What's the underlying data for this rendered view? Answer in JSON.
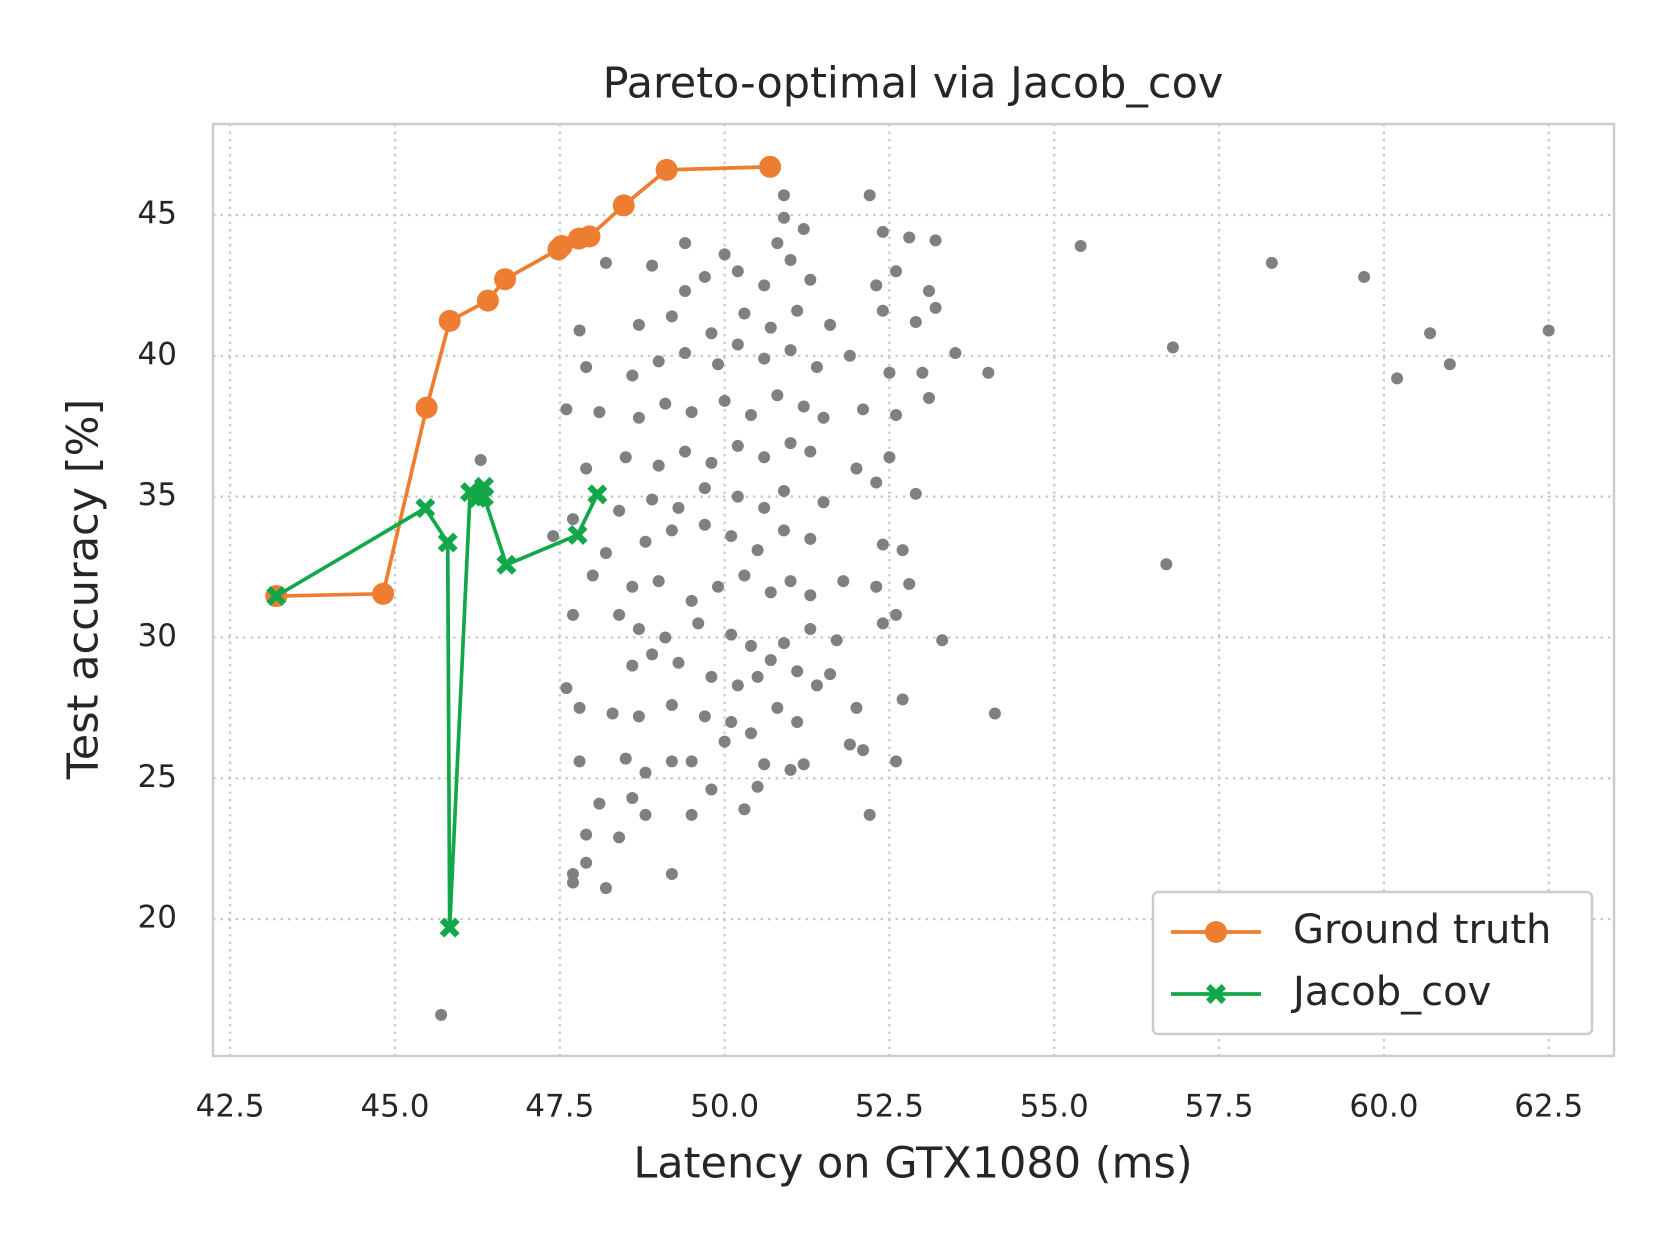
{
  "chart_data": {
    "type": "scatter",
    "title": "Pareto-optimal via Jacob_cov",
    "xlabel": "Latency on GTX1080 (ms)",
    "ylabel": "Test accuracy [%]",
    "xlim": [
      42.24,
      63.49
    ],
    "ylim": [
      15.14,
      48.23
    ],
    "xticks": [
      42.5,
      {
        "value": 45,
        "label": "45.0"
      },
      47.5,
      {
        "value": 50,
        "label": "50.0"
      },
      52.5,
      {
        "value": 55,
        "label": "55.0"
      },
      57.5,
      {
        "value": 60,
        "label": "60.0"
      },
      62.5
    ],
    "yticks": [
      20,
      25,
      30,
      35,
      40,
      45
    ],
    "grid": true,
    "legend": "lower right",
    "series": [
      {
        "color": "#808080",
        "marker": "dot",
        "line": false,
        "x": [
          47.7,
          47.7,
          48.2,
          47.9,
          47.9,
          48.4,
          48.1,
          48.6,
          48.8,
          49.5,
          49.8,
          50.3,
          50.5,
          52.2,
          47.8,
          48.5,
          48.8,
          49.2,
          49.5,
          50.0,
          50.6,
          51.0,
          51.2,
          51.9,
          52.6,
          52.1,
          47.8,
          48.3,
          48.7,
          49.2,
          49.7,
          50.1,
          50.4,
          50.8,
          51.1,
          52.0,
          52.7,
          54.1,
          47.6,
          48.6,
          48.9,
          49.3,
          49.8,
          50.2,
          50.5,
          50.7,
          51.1,
          51.6,
          51.4,
          53.3,
          47.7,
          48.4,
          48.7,
          49.1,
          49.6,
          50.1,
          50.4,
          50.9,
          51.3,
          51.7,
          52.4,
          52.6,
          48.0,
          48.6,
          49.0,
          49.5,
          49.9,
          50.3,
          50.7,
          51.0,
          51.3,
          51.8,
          52.3,
          52.8,
          48.2,
          48.8,
          49.2,
          49.7,
          50.1,
          50.5,
          50.9,
          51.3,
          52.4,
          52.7,
          47.4,
          47.7,
          48.4,
          48.9,
          49.3,
          49.7,
          50.2,
          50.6,
          50.9,
          51.5,
          52.3,
          52.9,
          47.9,
          48.5,
          49.0,
          49.4,
          49.8,
          50.2,
          50.6,
          51.0,
          51.3,
          52.0,
          52.5,
          47.6,
          48.1,
          48.7,
          49.1,
          49.5,
          50.0,
          50.4,
          50.8,
          51.2,
          51.5,
          52.1,
          52.6,
          53.1,
          47.9,
          48.6,
          49.0,
          49.4,
          49.9,
          50.2,
          50.6,
          51.0,
          51.4,
          51.9,
          52.5,
          53.0,
          47.8,
          48.7,
          49.2,
          49.8,
          50.3,
          50.7,
          51.1,
          51.6,
          52.4,
          52.9,
          53.2,
          48.2,
          48.9,
          49.4,
          49.7,
          50.2,
          50.6,
          51.0,
          51.3,
          52.3,
          52.6,
          53.1,
          49.4,
          50.0,
          50.8,
          51.2,
          52.4,
          52.8,
          53.2,
          50.9,
          55.4,
          56.7,
          56.8,
          58.3,
          59.7,
          60.2,
          60.7,
          61.0,
          62.5,
          54.0,
          53.5,
          45.7,
          46.3,
          49.2,
          50.9,
          52.2
        ],
        "values": [
          21.3,
          21.6,
          21.1,
          22.0,
          23.0,
          22.9,
          24.1,
          24.3,
          23.7,
          23.7,
          24.6,
          23.9,
          24.7,
          23.7,
          25.6,
          25.7,
          25.2,
          25.6,
          25.6,
          26.3,
          25.5,
          25.3,
          25.5,
          26.2,
          25.6,
          26.0,
          27.5,
          27.3,
          27.2,
          27.6,
          27.2,
          27.0,
          26.6,
          27.5,
          27.0,
          27.5,
          27.8,
          27.3,
          28.2,
          29.0,
          29.4,
          29.1,
          28.6,
          28.3,
          28.6,
          29.2,
          28.8,
          28.7,
          28.3,
          29.9,
          30.8,
          30.8,
          30.3,
          30.0,
          30.5,
          30.1,
          29.7,
          29.8,
          30.3,
          29.9,
          30.5,
          30.8,
          32.2,
          31.8,
          32.0,
          31.3,
          31.8,
          32.2,
          31.6,
          32.0,
          31.5,
          32.0,
          31.8,
          31.9,
          33.0,
          33.4,
          33.8,
          34.0,
          33.6,
          33.1,
          33.8,
          33.5,
          33.3,
          33.1,
          33.6,
          34.2,
          34.5,
          34.9,
          34.6,
          35.3,
          35.0,
          34.6,
          35.2,
          34.8,
          35.5,
          35.1,
          36.0,
          36.4,
          36.1,
          36.6,
          36.2,
          36.8,
          36.4,
          36.9,
          36.6,
          36.0,
          36.4,
          38.1,
          38.0,
          37.8,
          38.3,
          38.0,
          38.4,
          37.9,
          38.6,
          38.2,
          37.8,
          38.1,
          37.9,
          38.5,
          39.6,
          39.3,
          39.8,
          40.1,
          39.7,
          40.4,
          39.9,
          40.2,
          39.6,
          40.0,
          39.4,
          39.4,
          40.9,
          41.1,
          41.4,
          40.8,
          41.5,
          41.0,
          41.6,
          41.1,
          41.6,
          41.2,
          41.7,
          43.3,
          43.2,
          42.3,
          42.8,
          43.0,
          42.5,
          43.4,
          42.7,
          42.5,
          43.0,
          42.3,
          44.0,
          43.6,
          44.0,
          44.5,
          44.4,
          44.2,
          44.1,
          44.9,
          43.9,
          32.6,
          40.3,
          43.3,
          42.8,
          39.2,
          40.8,
          39.7,
          40.9,
          39.4,
          40.1,
          16.6,
          36.3,
          21.6,
          45.7,
          45.7
        ]
      },
      {
        "name": "Ground truth",
        "color": "#ed7d31",
        "marker": "circle",
        "line": true,
        "x": [
          43.2,
          44.82,
          45.48,
          45.83,
          46.41,
          46.67,
          47.48,
          47.53,
          47.79,
          47.95,
          48.47,
          49.12,
          50.69
        ],
        "values": [
          31.47,
          31.55,
          38.16,
          41.24,
          41.96,
          42.72,
          43.78,
          43.9,
          44.16,
          44.24,
          45.34,
          46.6,
          46.71
        ]
      },
      {
        "name": "Jacob_cov",
        "color": "#12a84a",
        "marker": "x",
        "line": true,
        "x": [
          43.2,
          45.46,
          45.8,
          45.83,
          46.14,
          46.35,
          46.25,
          46.35,
          46.69,
          47.77,
          48.07
        ],
        "values": [
          31.47,
          34.59,
          33.37,
          19.7,
          35.16,
          35.35,
          34.95,
          35.0,
          32.58,
          33.64,
          35.08
        ]
      }
    ]
  }
}
